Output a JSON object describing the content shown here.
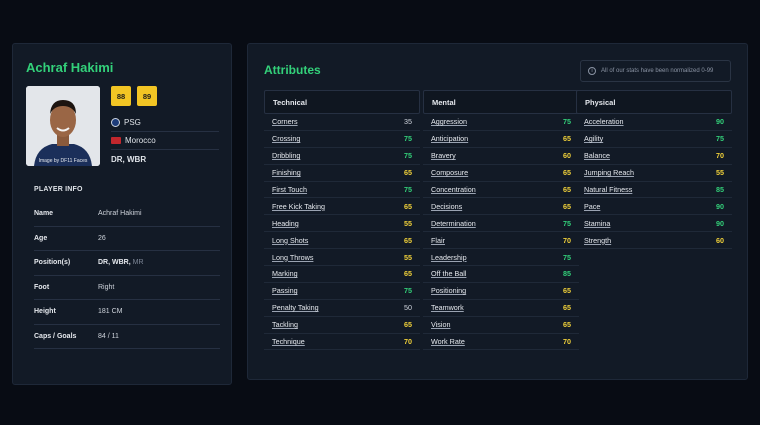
{
  "player": {
    "name": "Achraf Hakimi",
    "photo_credit": "Image by DF11 Faces",
    "ratings": [
      "88",
      "89"
    ],
    "club": "PSG",
    "nation": "Morocco",
    "positions_short": "DR, WBR"
  },
  "info": {
    "title": "PLAYER INFO",
    "rows": [
      {
        "key": "Name",
        "value": "Achraf Hakimi",
        "extra": ""
      },
      {
        "key": "Age",
        "value": "26",
        "extra": ""
      },
      {
        "key": "Position(s)",
        "value": "DR, WBR,",
        "extra": "MR"
      },
      {
        "key": "Foot",
        "value": "Right",
        "extra": ""
      },
      {
        "key": "Height",
        "value": "181 CM",
        "extra": ""
      },
      {
        "key": "Caps / Goals",
        "value": "84 / 11",
        "extra": ""
      }
    ]
  },
  "attributes": {
    "title": "Attributes",
    "note": "All of our stats have been normalized 0-99",
    "columns": [
      {
        "heading": "Technical",
        "items": [
          {
            "name": "Corners",
            "value": "35",
            "tier": "w"
          },
          {
            "name": "Crossing",
            "value": "75",
            "tier": "g"
          },
          {
            "name": "Dribbling",
            "value": "75",
            "tier": "g"
          },
          {
            "name": "Finishing",
            "value": "65",
            "tier": "y"
          },
          {
            "name": "First Touch",
            "value": "75",
            "tier": "g"
          },
          {
            "name": "Free Kick Taking",
            "value": "65",
            "tier": "y"
          },
          {
            "name": "Heading",
            "value": "55",
            "tier": "y"
          },
          {
            "name": "Long Shots",
            "value": "65",
            "tier": "y"
          },
          {
            "name": "Long Throws",
            "value": "55",
            "tier": "y"
          },
          {
            "name": "Marking",
            "value": "65",
            "tier": "y"
          },
          {
            "name": "Passing",
            "value": "75",
            "tier": "g"
          },
          {
            "name": "Penalty Taking",
            "value": "50",
            "tier": "w"
          },
          {
            "name": "Tackling",
            "value": "65",
            "tier": "y"
          },
          {
            "name": "Technique",
            "value": "70",
            "tier": "y"
          }
        ]
      },
      {
        "heading": "Mental",
        "items": [
          {
            "name": "Aggression",
            "value": "75",
            "tier": "g"
          },
          {
            "name": "Anticipation",
            "value": "65",
            "tier": "y"
          },
          {
            "name": "Bravery",
            "value": "60",
            "tier": "y"
          },
          {
            "name": "Composure",
            "value": "65",
            "tier": "y"
          },
          {
            "name": "Concentration",
            "value": "65",
            "tier": "y"
          },
          {
            "name": "Decisions",
            "value": "65",
            "tier": "y"
          },
          {
            "name": "Determination",
            "value": "75",
            "tier": "g"
          },
          {
            "name": "Flair",
            "value": "70",
            "tier": "y"
          },
          {
            "name": "Leadership",
            "value": "75",
            "tier": "g"
          },
          {
            "name": "Off the Ball",
            "value": "85",
            "tier": "g"
          },
          {
            "name": "Positioning",
            "value": "65",
            "tier": "y"
          },
          {
            "name": "Teamwork",
            "value": "65",
            "tier": "y"
          },
          {
            "name": "Vision",
            "value": "65",
            "tier": "y"
          },
          {
            "name": "Work Rate",
            "value": "70",
            "tier": "y"
          }
        ]
      },
      {
        "heading": "Physical",
        "items": [
          {
            "name": "Acceleration",
            "value": "90",
            "tier": "g"
          },
          {
            "name": "Agility",
            "value": "75",
            "tier": "g"
          },
          {
            "name": "Balance",
            "value": "70",
            "tier": "y"
          },
          {
            "name": "Jumping Reach",
            "value": "55",
            "tier": "y"
          },
          {
            "name": "Natural Fitness",
            "value": "85",
            "tier": "g"
          },
          {
            "name": "Pace",
            "value": "90",
            "tier": "g"
          },
          {
            "name": "Stamina",
            "value": "90",
            "tier": "g"
          },
          {
            "name": "Strength",
            "value": "60",
            "tier": "y"
          }
        ]
      }
    ]
  },
  "colors": {
    "accent": "#33d17a",
    "rating_bg": "#f2c524",
    "high": "#33d17a",
    "mid": "#f2d23a"
  },
  "icons": {
    "club": "club-crest-icon",
    "nation": "morocco-flag-icon",
    "info": "info-icon"
  }
}
